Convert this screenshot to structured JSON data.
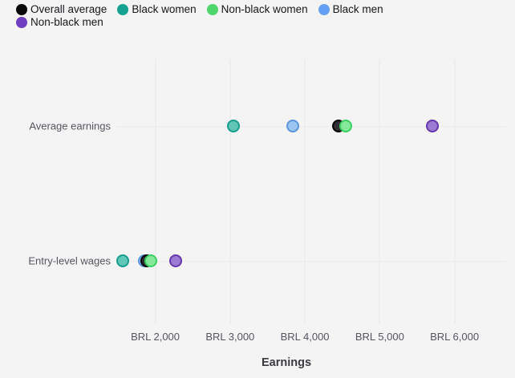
{
  "chart_data": {
    "type": "scatter",
    "variant": "dot-plot",
    "title": "",
    "xlabel": "Earnings",
    "ylabel": "",
    "categories": [
      "Average earnings",
      "Entry-level wages"
    ],
    "x_ticks": [
      {
        "label": "BRL 2,000",
        "value": 2000
      },
      {
        "label": "BRL 3,000",
        "value": 3000
      },
      {
        "label": "BRL 4,000",
        "value": 4000
      },
      {
        "label": "BRL 5,000",
        "value": 5000
      },
      {
        "label": "BRL 6,000",
        "value": 6000
      }
    ],
    "xlim": [
      1490,
      6680
    ],
    "grid": true,
    "legend_position": "top-left",
    "series": [
      {
        "name": "Overall average",
        "values": [
          4450,
          1890
        ],
        "color": "#0a0a0a",
        "ring": "#050505",
        "fill": "#2e2e33"
      },
      {
        "name": "Black women",
        "values": [
          3050,
          1570
        ],
        "color": "#16a291",
        "ring": "#169c8c",
        "fill": "#62c6b7"
      },
      {
        "name": "Non-black women",
        "values": [
          4550,
          1940
        ],
        "color": "#4ed66d",
        "ring": "#3bd063",
        "fill": "#85e89a"
      },
      {
        "name": "Black men",
        "values": [
          3840,
          1850
        ],
        "color": "#64a1f4",
        "ring": "#5897dd",
        "fill": "#9cc4f0"
      },
      {
        "name": "Non-black men",
        "values": [
          5700,
          2270
        ],
        "color": "#6e3fc0",
        "ring": "#6636ae",
        "fill": "#9b7cd2"
      }
    ]
  },
  "colors": {
    "background": "#f4f4f5",
    "gridline": "#e7e7ea",
    "row_line": "#ebebee",
    "tick_text": "#55555e",
    "category_text": "#55555e",
    "legend_text": "#17171a",
    "axis_title_text": "#3a3a40"
  },
  "layout_hints": {
    "row_percents": [
      25.2,
      76.2
    ]
  }
}
